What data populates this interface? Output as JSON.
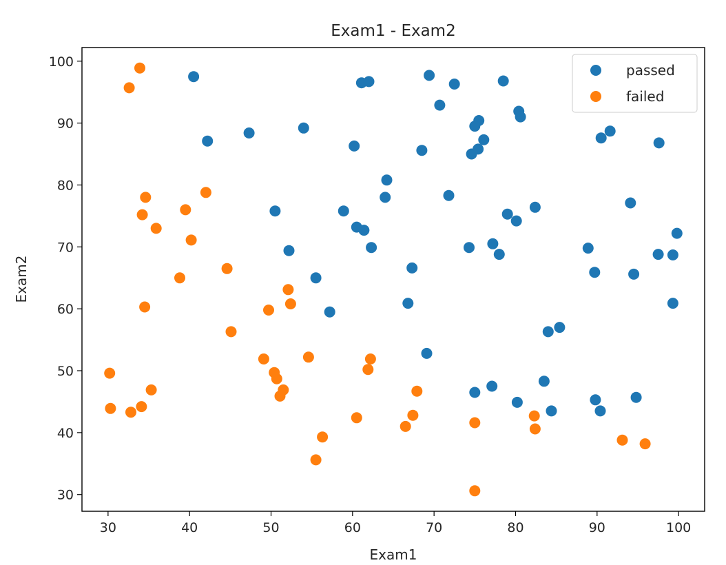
{
  "chart_data": {
    "type": "scatter",
    "title": "Exam1 - Exam2",
    "xlabel": "Exam1",
    "ylabel": "Exam2",
    "xlim": [
      26.8,
      103.2
    ],
    "ylim": [
      27.3,
      102.2
    ],
    "xticks": [
      30,
      40,
      50,
      60,
      70,
      80,
      90,
      100
    ],
    "yticks": [
      30,
      40,
      50,
      60,
      70,
      80,
      90,
      100
    ],
    "grid": false,
    "legend_position": "top-right",
    "series": [
      {
        "name": "passed",
        "color": "#1f77b4",
        "points": [
          [
            40.5,
            97.5
          ],
          [
            42.2,
            87.1
          ],
          [
            47.3,
            88.4
          ],
          [
            54.0,
            89.2
          ],
          [
            61.1,
            96.5
          ],
          [
            62.0,
            96.7
          ],
          [
            69.4,
            97.7
          ],
          [
            72.5,
            96.3
          ],
          [
            78.5,
            96.8
          ],
          [
            70.7,
            92.9
          ],
          [
            80.4,
            91.9
          ],
          [
            80.6,
            91.0
          ],
          [
            75.5,
            90.4
          ],
          [
            75.0,
            89.5
          ],
          [
            91.6,
            88.7
          ],
          [
            90.5,
            87.6
          ],
          [
            97.6,
            86.8
          ],
          [
            76.1,
            87.3
          ],
          [
            68.5,
            85.6
          ],
          [
            75.4,
            85.8
          ],
          [
            74.6,
            85.0
          ],
          [
            60.2,
            86.3
          ],
          [
            64.2,
            80.8
          ],
          [
            64.0,
            78.0
          ],
          [
            71.8,
            78.3
          ],
          [
            82.4,
            76.4
          ],
          [
            94.1,
            77.1
          ],
          [
            79.0,
            75.3
          ],
          [
            80.1,
            74.2
          ],
          [
            99.8,
            72.2
          ],
          [
            50.5,
            75.8
          ],
          [
            58.9,
            75.8
          ],
          [
            60.5,
            73.2
          ],
          [
            61.4,
            72.7
          ],
          [
            62.3,
            69.9
          ],
          [
            52.2,
            69.4
          ],
          [
            74.3,
            69.9
          ],
          [
            77.2,
            70.5
          ],
          [
            78.0,
            68.8
          ],
          [
            88.9,
            69.8
          ],
          [
            97.5,
            68.8
          ],
          [
            99.3,
            68.7
          ],
          [
            67.3,
            66.6
          ],
          [
            89.7,
            65.9
          ],
          [
            94.5,
            65.6
          ],
          [
            55.5,
            65.0
          ],
          [
            66.8,
            60.9
          ],
          [
            99.3,
            60.9
          ],
          [
            57.2,
            59.5
          ],
          [
            85.4,
            57.0
          ],
          [
            84.0,
            56.3
          ],
          [
            69.1,
            52.8
          ],
          [
            75.0,
            46.5
          ],
          [
            77.1,
            47.5
          ],
          [
            83.5,
            48.3
          ],
          [
            80.2,
            44.9
          ],
          [
            84.4,
            43.5
          ],
          [
            89.8,
            45.3
          ],
          [
            90.4,
            43.5
          ],
          [
            94.8,
            45.7
          ]
        ]
      },
      {
        "name": "failed",
        "color": "#ff7f0e",
        "points": [
          [
            33.9,
            98.9
          ],
          [
            32.6,
            95.7
          ],
          [
            42.0,
            78.8
          ],
          [
            34.6,
            78.0
          ],
          [
            39.5,
            76.0
          ],
          [
            34.2,
            75.2
          ],
          [
            35.9,
            73.0
          ],
          [
            40.2,
            71.1
          ],
          [
            44.6,
            66.5
          ],
          [
            38.8,
            65.0
          ],
          [
            52.1,
            63.1
          ],
          [
            52.4,
            60.8
          ],
          [
            34.5,
            60.3
          ],
          [
            49.7,
            59.8
          ],
          [
            45.1,
            56.3
          ],
          [
            49.1,
            51.9
          ],
          [
            54.6,
            52.2
          ],
          [
            62.2,
            51.9
          ],
          [
            61.9,
            50.2
          ],
          [
            30.2,
            49.6
          ],
          [
            50.4,
            49.7
          ],
          [
            50.7,
            48.7
          ],
          [
            51.5,
            46.9
          ],
          [
            51.1,
            45.9
          ],
          [
            35.3,
            46.9
          ],
          [
            67.9,
            46.7
          ],
          [
            30.3,
            43.9
          ],
          [
            32.8,
            43.3
          ],
          [
            34.1,
            44.2
          ],
          [
            67.4,
            42.8
          ],
          [
            60.5,
            42.4
          ],
          [
            82.3,
            42.7
          ],
          [
            75.0,
            41.6
          ],
          [
            66.5,
            41.0
          ],
          [
            82.4,
            40.6
          ],
          [
            93.1,
            38.8
          ],
          [
            95.9,
            38.2
          ],
          [
            56.3,
            39.3
          ],
          [
            55.5,
            35.6
          ],
          [
            75.0,
            30.6
          ]
        ]
      }
    ]
  }
}
